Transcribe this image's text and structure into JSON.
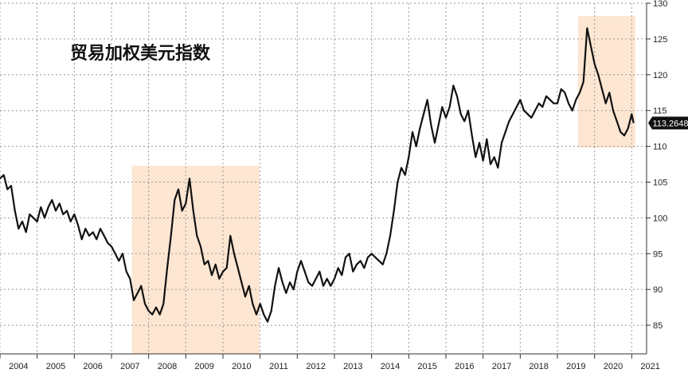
{
  "chart_data": {
    "type": "line",
    "title": "贸易加权美元指数",
    "xlabel": "",
    "ylabel": "",
    "xlim": [
      2004.0,
      2021.4
    ],
    "ylim": [
      81,
      130
    ],
    "y_axis_position": "right",
    "grid": true,
    "grid_style": "dotted",
    "line_color": "#111111",
    "highlight_color": "#fde6d2",
    "last_value_label": "113.2648",
    "last_value_label_bg": "#111111",
    "x_ticks": [
      "2004",
      "2005",
      "2006",
      "2007",
      "2008",
      "2009",
      "2010",
      "2011",
      "2012",
      "2013",
      "2014",
      "2015",
      "2016",
      "2017",
      "2018",
      "2019",
      "2020",
      "2021"
    ],
    "y_ticks": [
      "85",
      "90",
      "95",
      "100",
      "105",
      "110",
      "115",
      "120",
      "125",
      "130"
    ],
    "highlights": [
      {
        "x": [
          2007.55,
          2010.98
        ],
        "y": [
          81,
          107.3
        ]
      },
      {
        "x": [
          2019.55,
          2021.1
        ],
        "y": [
          109.8,
          128.2
        ]
      }
    ],
    "series": [
      {
        "values": [
          [
            2004.0,
            105.5
          ],
          [
            2004.1,
            106.0
          ],
          [
            2004.2,
            104.0
          ],
          [
            2004.3,
            104.5
          ],
          [
            2004.4,
            101.0
          ],
          [
            2004.5,
            98.5
          ],
          [
            2004.6,
            99.5
          ],
          [
            2004.7,
            98.0
          ],
          [
            2004.8,
            100.5
          ],
          [
            2004.9,
            100.0
          ],
          [
            2005.0,
            99.5
          ],
          [
            2005.1,
            101.5
          ],
          [
            2005.2,
            100.0
          ],
          [
            2005.3,
            101.5
          ],
          [
            2005.4,
            102.5
          ],
          [
            2005.5,
            101.0
          ],
          [
            2005.6,
            102.0
          ],
          [
            2005.7,
            100.5
          ],
          [
            2005.8,
            101.0
          ],
          [
            2005.9,
            99.5
          ],
          [
            2006.0,
            100.5
          ],
          [
            2006.1,
            99.0
          ],
          [
            2006.2,
            97.0
          ],
          [
            2006.3,
            98.5
          ],
          [
            2006.4,
            97.5
          ],
          [
            2006.5,
            98.0
          ],
          [
            2006.6,
            97.0
          ],
          [
            2006.7,
            98.5
          ],
          [
            2006.8,
            97.5
          ],
          [
            2006.9,
            96.5
          ],
          [
            2007.0,
            96.0
          ],
          [
            2007.1,
            95.0
          ],
          [
            2007.2,
            94.0
          ],
          [
            2007.3,
            95.0
          ],
          [
            2007.4,
            92.5
          ],
          [
            2007.5,
            91.5
          ],
          [
            2007.6,
            88.5
          ],
          [
            2007.7,
            89.5
          ],
          [
            2007.8,
            90.5
          ],
          [
            2007.9,
            88.0
          ],
          [
            2008.0,
            87.0
          ],
          [
            2008.1,
            86.5
          ],
          [
            2008.2,
            87.5
          ],
          [
            2008.3,
            86.5
          ],
          [
            2008.4,
            88.0
          ],
          [
            2008.5,
            93.0
          ],
          [
            2008.6,
            97.5
          ],
          [
            2008.7,
            102.5
          ],
          [
            2008.8,
            104.0
          ],
          [
            2008.9,
            101.0
          ],
          [
            2009.0,
            102.0
          ],
          [
            2009.1,
            105.5
          ],
          [
            2009.2,
            101.0
          ],
          [
            2009.3,
            97.5
          ],
          [
            2009.4,
            96.0
          ],
          [
            2009.5,
            93.5
          ],
          [
            2009.6,
            94.0
          ],
          [
            2009.7,
            92.0
          ],
          [
            2009.8,
            93.5
          ],
          [
            2009.9,
            91.5
          ],
          [
            2010.0,
            92.5
          ],
          [
            2010.1,
            93.0
          ],
          [
            2010.2,
            97.5
          ],
          [
            2010.3,
            95.0
          ],
          [
            2010.4,
            93.0
          ],
          [
            2010.5,
            91.0
          ],
          [
            2010.6,
            89.0
          ],
          [
            2010.7,
            90.5
          ],
          [
            2010.8,
            88.0
          ],
          [
            2010.9,
            86.5
          ],
          [
            2011.0,
            88.0
          ],
          [
            2011.1,
            86.5
          ],
          [
            2011.2,
            85.5
          ],
          [
            2011.3,
            87.0
          ],
          [
            2011.4,
            90.5
          ],
          [
            2011.5,
            93.0
          ],
          [
            2011.6,
            91.0
          ],
          [
            2011.7,
            89.5
          ],
          [
            2011.8,
            91.0
          ],
          [
            2011.9,
            90.0
          ],
          [
            2012.0,
            92.5
          ],
          [
            2012.1,
            94.0
          ],
          [
            2012.2,
            92.5
          ],
          [
            2012.3,
            91.0
          ],
          [
            2012.4,
            90.5
          ],
          [
            2012.5,
            91.5
          ],
          [
            2012.6,
            92.5
          ],
          [
            2012.7,
            90.5
          ],
          [
            2012.8,
            91.5
          ],
          [
            2012.9,
            90.5
          ],
          [
            2013.0,
            91.5
          ],
          [
            2013.1,
            93.0
          ],
          [
            2013.2,
            92.0
          ],
          [
            2013.3,
            94.5
          ],
          [
            2013.4,
            95.0
          ],
          [
            2013.5,
            92.5
          ],
          [
            2013.6,
            93.5
          ],
          [
            2013.7,
            94.0
          ],
          [
            2013.8,
            93.0
          ],
          [
            2013.9,
            94.5
          ],
          [
            2014.0,
            95.0
          ],
          [
            2014.1,
            94.5
          ],
          [
            2014.2,
            94.0
          ],
          [
            2014.3,
            93.5
          ],
          [
            2014.4,
            95.0
          ],
          [
            2014.5,
            97.5
          ],
          [
            2014.6,
            101.0
          ],
          [
            2014.7,
            105.0
          ],
          [
            2014.8,
            107.0
          ],
          [
            2014.9,
            106.0
          ],
          [
            2015.0,
            108.5
          ],
          [
            2015.1,
            112.0
          ],
          [
            2015.2,
            110.0
          ],
          [
            2015.3,
            112.5
          ],
          [
            2015.4,
            114.5
          ],
          [
            2015.5,
            116.5
          ],
          [
            2015.6,
            113.0
          ],
          [
            2015.7,
            110.5
          ],
          [
            2015.8,
            113.0
          ],
          [
            2015.9,
            115.5
          ],
          [
            2016.0,
            114.0
          ],
          [
            2016.1,
            115.5
          ],
          [
            2016.2,
            118.5
          ],
          [
            2016.3,
            117.0
          ],
          [
            2016.4,
            114.5
          ],
          [
            2016.5,
            113.5
          ],
          [
            2016.6,
            115.0
          ],
          [
            2016.7,
            111.5
          ],
          [
            2016.8,
            108.5
          ],
          [
            2016.9,
            110.5
          ],
          [
            2017.0,
            108.0
          ],
          [
            2017.1,
            111.0
          ],
          [
            2017.2,
            107.5
          ],
          [
            2017.3,
            108.5
          ],
          [
            2017.4,
            107.0
          ],
          [
            2017.5,
            110.5
          ],
          [
            2017.6,
            112.0
          ],
          [
            2017.7,
            113.5
          ],
          [
            2017.8,
            114.5
          ],
          [
            2017.9,
            115.5
          ],
          [
            2018.0,
            116.5
          ],
          [
            2018.1,
            115.0
          ],
          [
            2018.2,
            114.5
          ],
          [
            2018.3,
            114.0
          ],
          [
            2018.4,
            115.0
          ],
          [
            2018.5,
            116.0
          ],
          [
            2018.6,
            115.5
          ],
          [
            2018.7,
            117.0
          ],
          [
            2018.8,
            116.5
          ],
          [
            2018.9,
            116.0
          ],
          [
            2019.0,
            116.0
          ],
          [
            2019.1,
            118.0
          ],
          [
            2019.2,
            117.5
          ],
          [
            2019.3,
            116.0
          ],
          [
            2019.4,
            115.0
          ],
          [
            2019.5,
            116.5
          ],
          [
            2019.6,
            117.5
          ],
          [
            2019.7,
            119.0
          ],
          [
            2019.8,
            126.5
          ],
          [
            2019.9,
            124.0
          ],
          [
            2020.0,
            121.5
          ],
          [
            2020.1,
            120.0
          ],
          [
            2020.2,
            118.0
          ],
          [
            2020.3,
            116.0
          ],
          [
            2020.4,
            117.5
          ],
          [
            2020.5,
            115.0
          ],
          [
            2020.6,
            113.5
          ],
          [
            2020.7,
            112.0
          ],
          [
            2020.8,
            111.5
          ],
          [
            2020.9,
            112.5
          ],
          [
            2021.0,
            114.5
          ],
          [
            2021.05,
            113.26
          ]
        ]
      }
    ]
  }
}
